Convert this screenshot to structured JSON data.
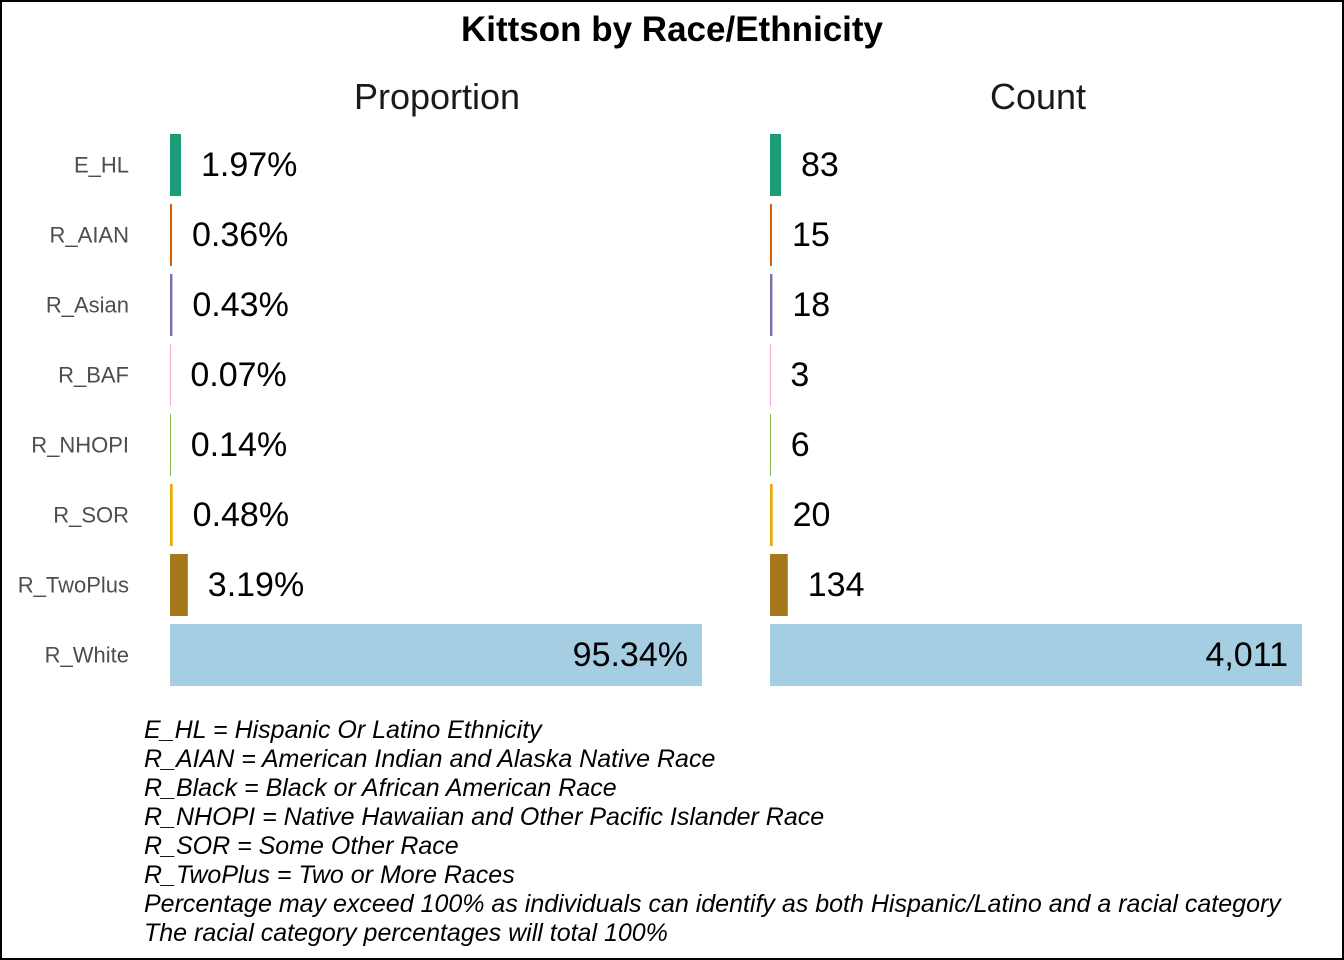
{
  "chart_data": {
    "type": "bar",
    "orientation": "horizontal",
    "title": "Kittson by Race/Ethnicity",
    "categories": [
      "E_HL",
      "R_AIAN",
      "R_Asian",
      "R_BAF",
      "R_NHOPI",
      "R_SOR",
      "R_TwoPlus",
      "R_White"
    ],
    "colors": [
      "#1b9e77",
      "#d95f02",
      "#7570b3",
      "#e7298a",
      "#66a61e",
      "#e6ab02",
      "#a6761d",
      "#a6cee3"
    ],
    "panels": [
      {
        "name": "Proportion",
        "values": [
          1.97,
          0.36,
          0.43,
          0.07,
          0.14,
          0.48,
          3.19,
          95.34
        ],
        "labels": [
          "1.97%",
          "0.36%",
          "0.43%",
          "0.07%",
          "0.14%",
          "0.48%",
          "3.19%",
          "95.34%"
        ]
      },
      {
        "name": "Count",
        "values": [
          83,
          15,
          18,
          3,
          6,
          20,
          134,
          4011
        ],
        "labels": [
          "83",
          "15",
          "18",
          "3",
          "6",
          "20",
          "134",
          "4,011"
        ]
      }
    ],
    "grid": false,
    "legend": "none"
  },
  "notes": [
    "E_HL = Hispanic Or Latino Ethnicity",
    "R_AIAN = American Indian and Alaska Native Race",
    "R_Black = Black or African American Race",
    "R_NHOPI = Native Hawaiian and Other Pacific Islander Race",
    "R_SOR = Some Other Race",
    "R_TwoPlus = Two or More Races",
    "Percentage may exceed 100% as individuals can identify as both Hispanic/Latino and a racial category",
    "The racial category percentages will total 100%"
  ]
}
